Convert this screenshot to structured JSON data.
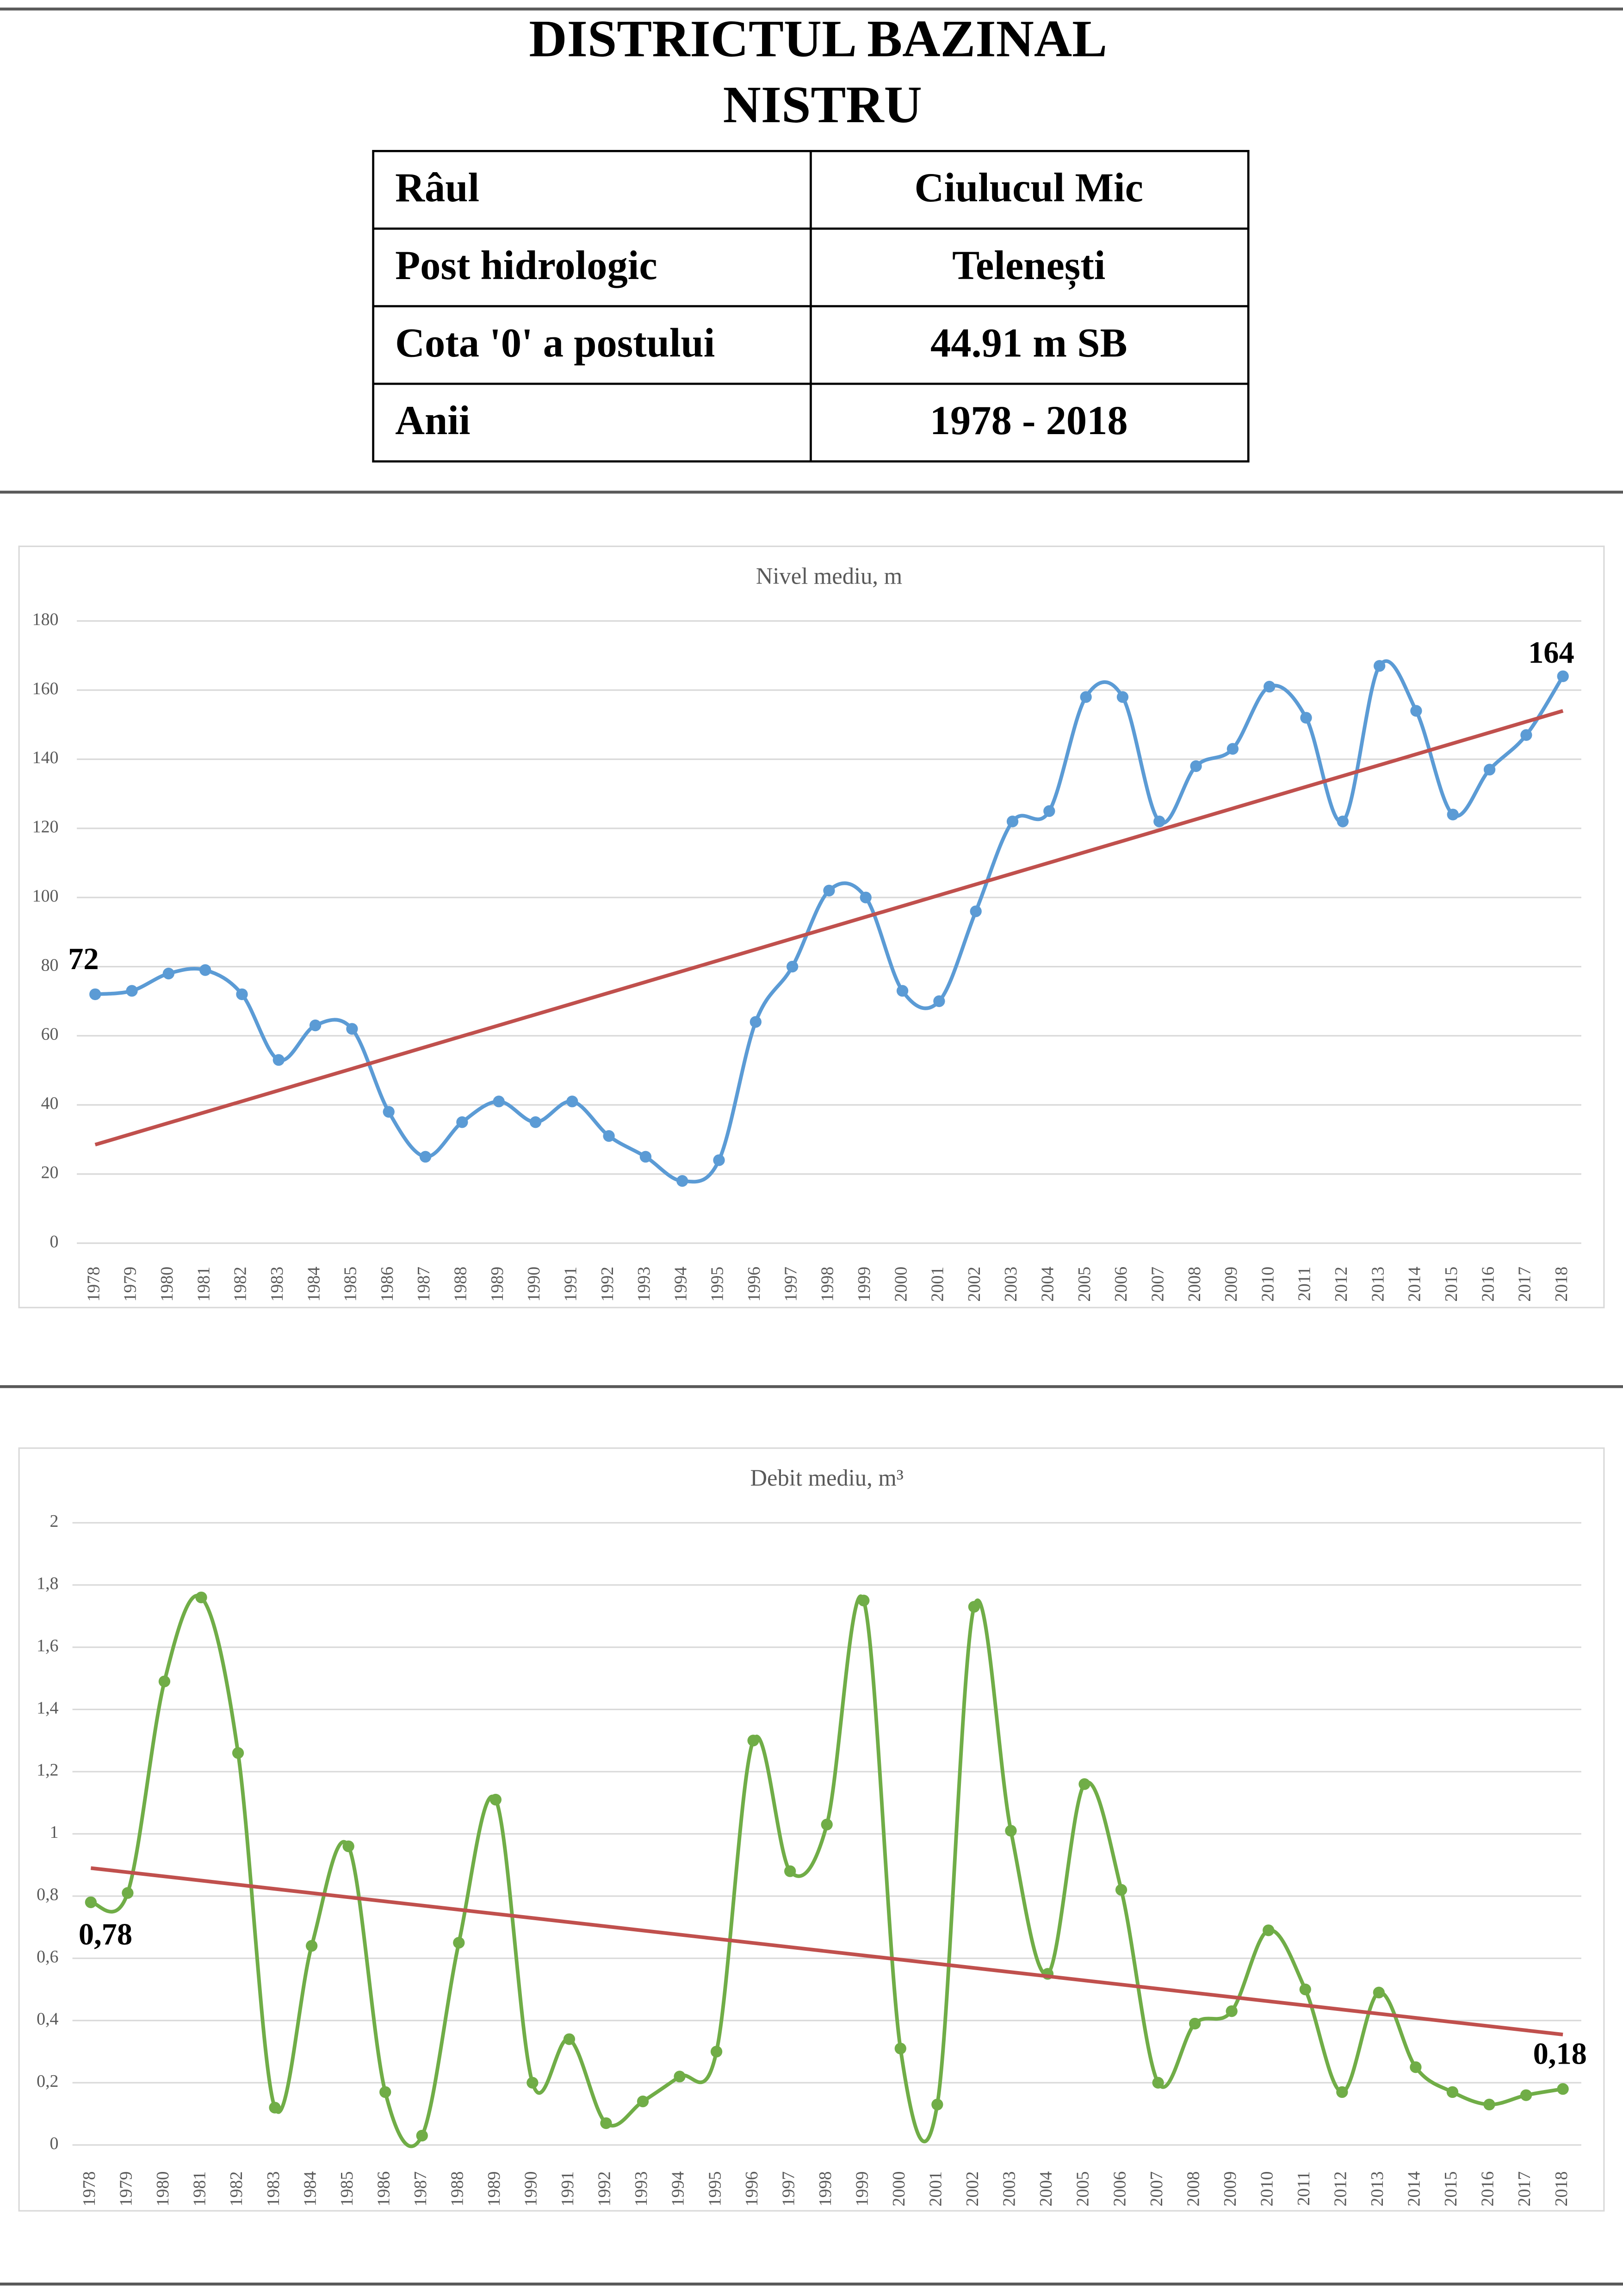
{
  "header": {
    "title_lines": [
      "DISTRICTUL BAZINAL",
      "NISTRU"
    ]
  },
  "table": {
    "rows": [
      [
        "Râul",
        "Ciulucul Mic"
      ],
      [
        "Post hidrologic",
        "Telenești"
      ],
      [
        "Cota '0' a postului",
        "44.91 m SB"
      ],
      [
        "Anii",
        "1978 - 2018"
      ]
    ]
  },
  "chart_data": [
    {
      "type": "line",
      "title": "Nivel mediu, m",
      "categories": [
        "1978",
        "1979",
        "1980",
        "1981",
        "1982",
        "1983",
        "1984",
        "1985",
        "1986",
        "1987",
        "1988",
        "1989",
        "1990",
        "1991",
        "1992",
        "1993",
        "1994",
        "1995",
        "1996",
        "1997",
        "1998",
        "1999",
        "2000",
        "2001",
        "2002",
        "2003",
        "2004",
        "2005",
        "2006",
        "2007",
        "2008",
        "2009",
        "2010",
        "2011",
        "2012",
        "2013",
        "2014",
        "2015",
        "2016",
        "2017",
        "2018"
      ],
      "series": [
        {
          "color": "#5b9bd5",
          "values": [
            72,
            73,
            78,
            79,
            72,
            53,
            63,
            62,
            38,
            25,
            35,
            41,
            35,
            41,
            31,
            25,
            18,
            24,
            64,
            80,
            102,
            100,
            73,
            70,
            96,
            122,
            125,
            158,
            158,
            122,
            138,
            143,
            161,
            152,
            122,
            167,
            154,
            124,
            137,
            147,
            164
          ],
          "value_labels": [
            "72",
            null,
            null,
            null,
            null,
            null,
            null,
            null,
            null,
            null,
            null,
            null,
            null,
            null,
            null,
            null,
            null,
            null,
            null,
            null,
            null,
            null,
            null,
            null,
            null,
            null,
            null,
            null,
            null,
            null,
            null,
            null,
            null,
            null,
            null,
            null,
            null,
            null,
            null,
            null,
            "164"
          ]
        }
      ],
      "trend": {
        "color": "#c0504d",
        "start": 28.5,
        "end": 154
      },
      "ylim": [
        0,
        180
      ],
      "yticks": [
        0,
        20,
        40,
        60,
        80,
        100,
        120,
        140,
        160,
        180
      ],
      "grid": true
    },
    {
      "type": "line",
      "title": "Debit mediu, m³",
      "categories": [
        "1978",
        "1979",
        "1980",
        "1981",
        "1982",
        "1983",
        "1984",
        "1985",
        "1986",
        "1987",
        "1988",
        "1989",
        "1990",
        "1991",
        "1992",
        "1993",
        "1994",
        "1995",
        "1996",
        "1997",
        "1998",
        "1999",
        "2000",
        "2001",
        "2002",
        "2003",
        "2004",
        "2005",
        "2006",
        "2007",
        "2008",
        "2009",
        "2010",
        "2011",
        "2012",
        "2013",
        "2014",
        "2015",
        "2016",
        "2017",
        "2018"
      ],
      "series": [
        {
          "color": "#70ad47",
          "values": [
            0.78,
            0.81,
            1.49,
            1.76,
            1.26,
            0.12,
            0.64,
            0.96,
            0.17,
            0.03,
            0.65,
            1.11,
            0.2,
            0.34,
            0.07,
            0.14,
            0.22,
            0.3,
            1.3,
            0.88,
            1.03,
            1.75,
            0.31,
            0.13,
            1.73,
            1.01,
            0.55,
            1.16,
            0.82,
            0.2,
            0.39,
            0.43,
            0.69,
            0.5,
            0.17,
            0.49,
            0.25,
            0.17,
            0.13,
            0.16,
            0.18
          ],
          "value_labels": [
            "0,78",
            null,
            null,
            null,
            null,
            null,
            null,
            null,
            null,
            null,
            null,
            null,
            null,
            null,
            null,
            null,
            null,
            null,
            null,
            null,
            null,
            null,
            null,
            null,
            null,
            null,
            null,
            null,
            null,
            null,
            null,
            null,
            null,
            null,
            null,
            null,
            null,
            null,
            null,
            null,
            "0,18"
          ]
        }
      ],
      "trend": {
        "color": "#c0504d",
        "start": 0.89,
        "end": 0.355
      },
      "ylim": [
        0,
        2
      ],
      "yticks": [
        0,
        {
          "value": 0.2,
          "label": "0,2"
        },
        {
          "value": 0.4,
          "label": "0,4"
        },
        {
          "value": 0.6,
          "label": "0,6"
        },
        {
          "value": 0.8,
          "label": "0,8"
        },
        1,
        {
          "value": 1.2,
          "label": "1,2"
        },
        {
          "value": 1.4,
          "label": "1,4"
        },
        {
          "value": 1.6,
          "label": "1,6"
        },
        {
          "value": 1.8,
          "label": "1,8"
        },
        2
      ],
      "grid": true
    }
  ]
}
